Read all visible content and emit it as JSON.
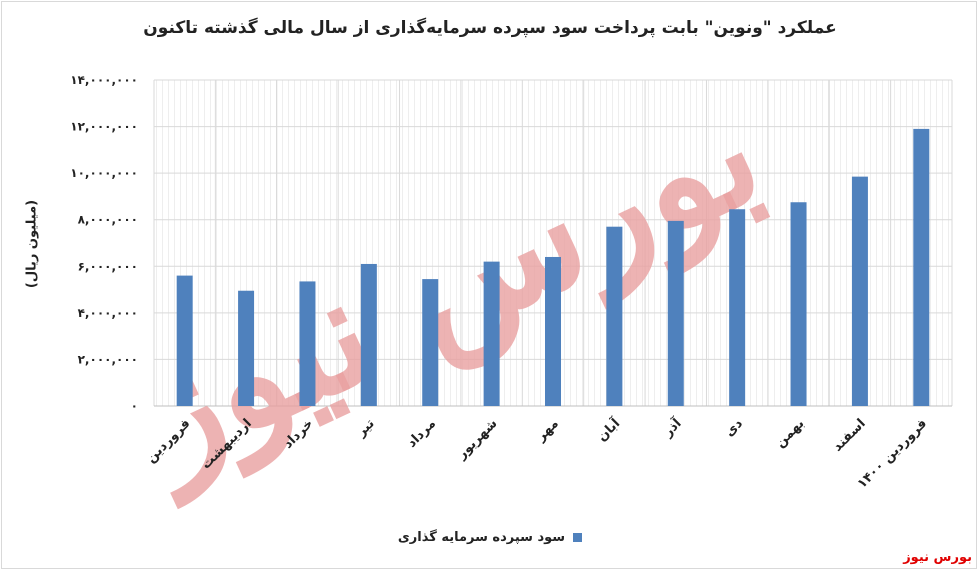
{
  "title": "عملکرد \"ونوین\" بابت پرداخت سود سپرده سرمایه‌گذاری از سال مالی گذشته تاکنون",
  "source_label": "بورس نیوز",
  "watermark": "بورس نیوز",
  "colors": {
    "bar": "#4f81bd",
    "grid": "#d9d9d9",
    "watermark": "#e8a0a0",
    "source": "#e00000"
  },
  "chart_data": {
    "type": "bar",
    "ylabel": "(میلیون ریال)",
    "ylim": [
      0,
      14000000
    ],
    "y_ticks": [
      0,
      2000000,
      4000000,
      6000000,
      8000000,
      10000000,
      12000000,
      14000000
    ],
    "y_tick_labels": [
      "۰",
      "۲,۰۰۰,۰۰۰",
      "۴,۰۰۰,۰۰۰",
      "۶,۰۰۰,۰۰۰",
      "۸,۰۰۰,۰۰۰",
      "۱۰,۰۰۰,۰۰۰",
      "۱۲,۰۰۰,۰۰۰",
      "۱۴,۰۰۰,۰۰۰"
    ],
    "categories": [
      "فروردین",
      "اردیبهشت",
      "خرداد",
      "تیر",
      "مرداد",
      "شهریور",
      "مهر",
      "آبان",
      "آذر",
      "دی",
      "بهمن",
      "اسفند",
      "فروردین ۱۴۰۰"
    ],
    "series": [
      {
        "name": "سود سپرده سرمایه گذاری",
        "values": [
          5600000,
          4950000,
          5350000,
          6100000,
          5450000,
          6200000,
          6400000,
          7700000,
          7950000,
          8450000,
          8750000,
          9850000,
          11900000
        ]
      }
    ],
    "grid": true,
    "legend_position": "bottom"
  }
}
